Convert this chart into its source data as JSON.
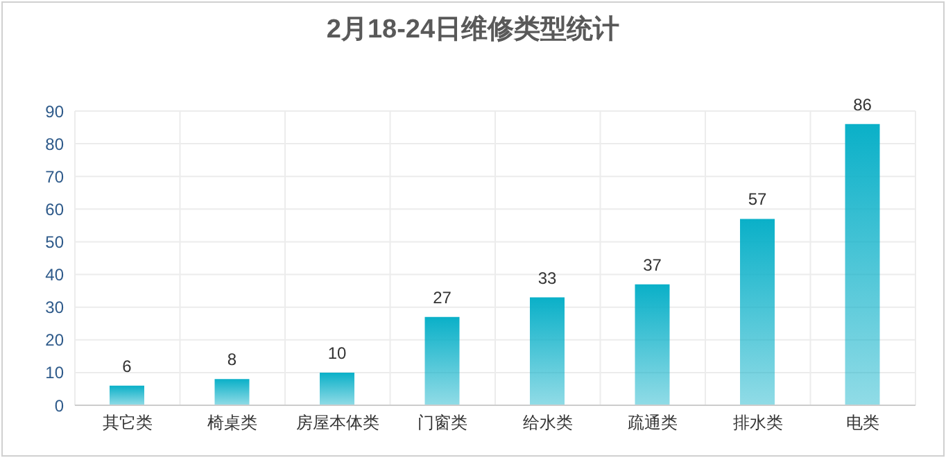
{
  "chart_data": {
    "type": "bar",
    "title": "2月18-24日维修类型统计",
    "categories": [
      "其它类",
      "椅桌类",
      "房屋本体类",
      "门窗类",
      "给水类",
      "疏通类",
      "排水类",
      "电类"
    ],
    "values": [
      6,
      8,
      10,
      27,
      33,
      37,
      57,
      86
    ],
    "color": "#0ab0c8",
    "ylim": [
      0,
      90
    ],
    "yticks": [
      0,
      10,
      20,
      30,
      40,
      50,
      60,
      70,
      80,
      90
    ],
    "grid": true,
    "data_labels": true
  }
}
